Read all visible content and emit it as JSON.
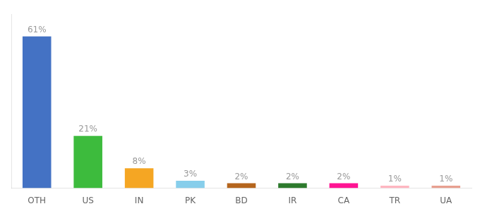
{
  "chart_data": {
    "type": "bar",
    "categories": [
      "OTH",
      "US",
      "IN",
      "PK",
      "BD",
      "IR",
      "CA",
      "TR",
      "UA"
    ],
    "values": [
      61,
      21,
      8,
      3,
      2,
      2,
      2,
      1,
      1
    ],
    "value_labels": [
      "61%",
      "21%",
      "8%",
      "3%",
      "2%",
      "2%",
      "2%",
      "1%",
      "1%"
    ],
    "colors": [
      "#4472c4",
      "#3dbb3d",
      "#f5a623",
      "#87ceeb",
      "#b5651d",
      "#2d7a2d",
      "#ff1493",
      "#ffb6c1",
      "#e8a090"
    ],
    "ylim": [
      0,
      70
    ],
    "grid": false,
    "data_labels": true,
    "tick_labels": "x"
  }
}
